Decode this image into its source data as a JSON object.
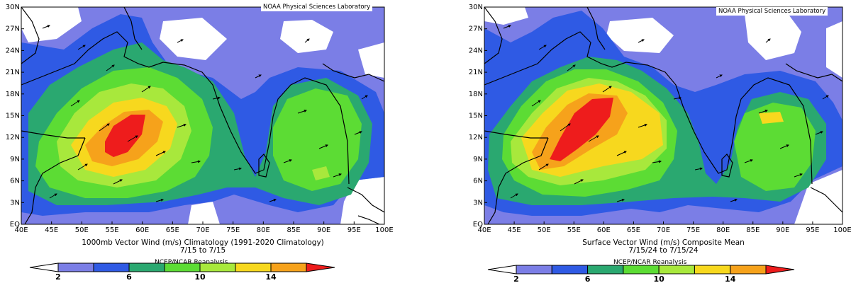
{
  "colors": {
    "lt2": "#ffffff",
    "c2_4": "#7b7ee6",
    "c4_6": "#2f5ae4",
    "c6_8": "#2aa870",
    "c8_10": "#5cdc34",
    "c10_12": "#a8e83c",
    "c12_14": "#f7d81e",
    "c14_16": "#f6a21b",
    "gt16": "#ee1c1c",
    "coast": "#000000"
  },
  "axis": {
    "lat_labels": [
      "30N",
      "27N",
      "24N",
      "21N",
      "18N",
      "15N",
      "12N",
      "9N",
      "6N",
      "3N",
      "EQ"
    ],
    "lon_labels": [
      "40E",
      "45E",
      "50E",
      "55E",
      "60E",
      "65E",
      "70E",
      "75E",
      "80E",
      "85E",
      "90E",
      "95E",
      "100E"
    ]
  },
  "panels": [
    {
      "credit": "NOAA Physical Sciences Laboratory",
      "caption_line1": "1000mb Vector Wind (m/s) Climatology (1991-2020 Climatology)",
      "caption_line2": "7/15  to 7/15",
      "source": "NCEP/NCAR Reanalysis",
      "colorbar_ticks": [
        "2",
        "6",
        "10",
        "14"
      ],
      "max_speed_region": "Arabian Sea 10N-15N, 55E-60E",
      "max_speed_class": ">16"
    },
    {
      "credit": "NOAA Physical Sciences Laboratory",
      "caption_line1": "Surface Vector Wind (m/s) Composite Mean",
      "caption_line2": "7/15/24  to 7/15/24",
      "source": "NCEP/NCAR Reanalysis",
      "colorbar_ticks": [
        "2",
        "6",
        "10",
        "14"
      ],
      "max_speed_region": "Arabian Sea 9N-18N, 54E-61E",
      "max_speed_class": ">16"
    }
  ]
}
